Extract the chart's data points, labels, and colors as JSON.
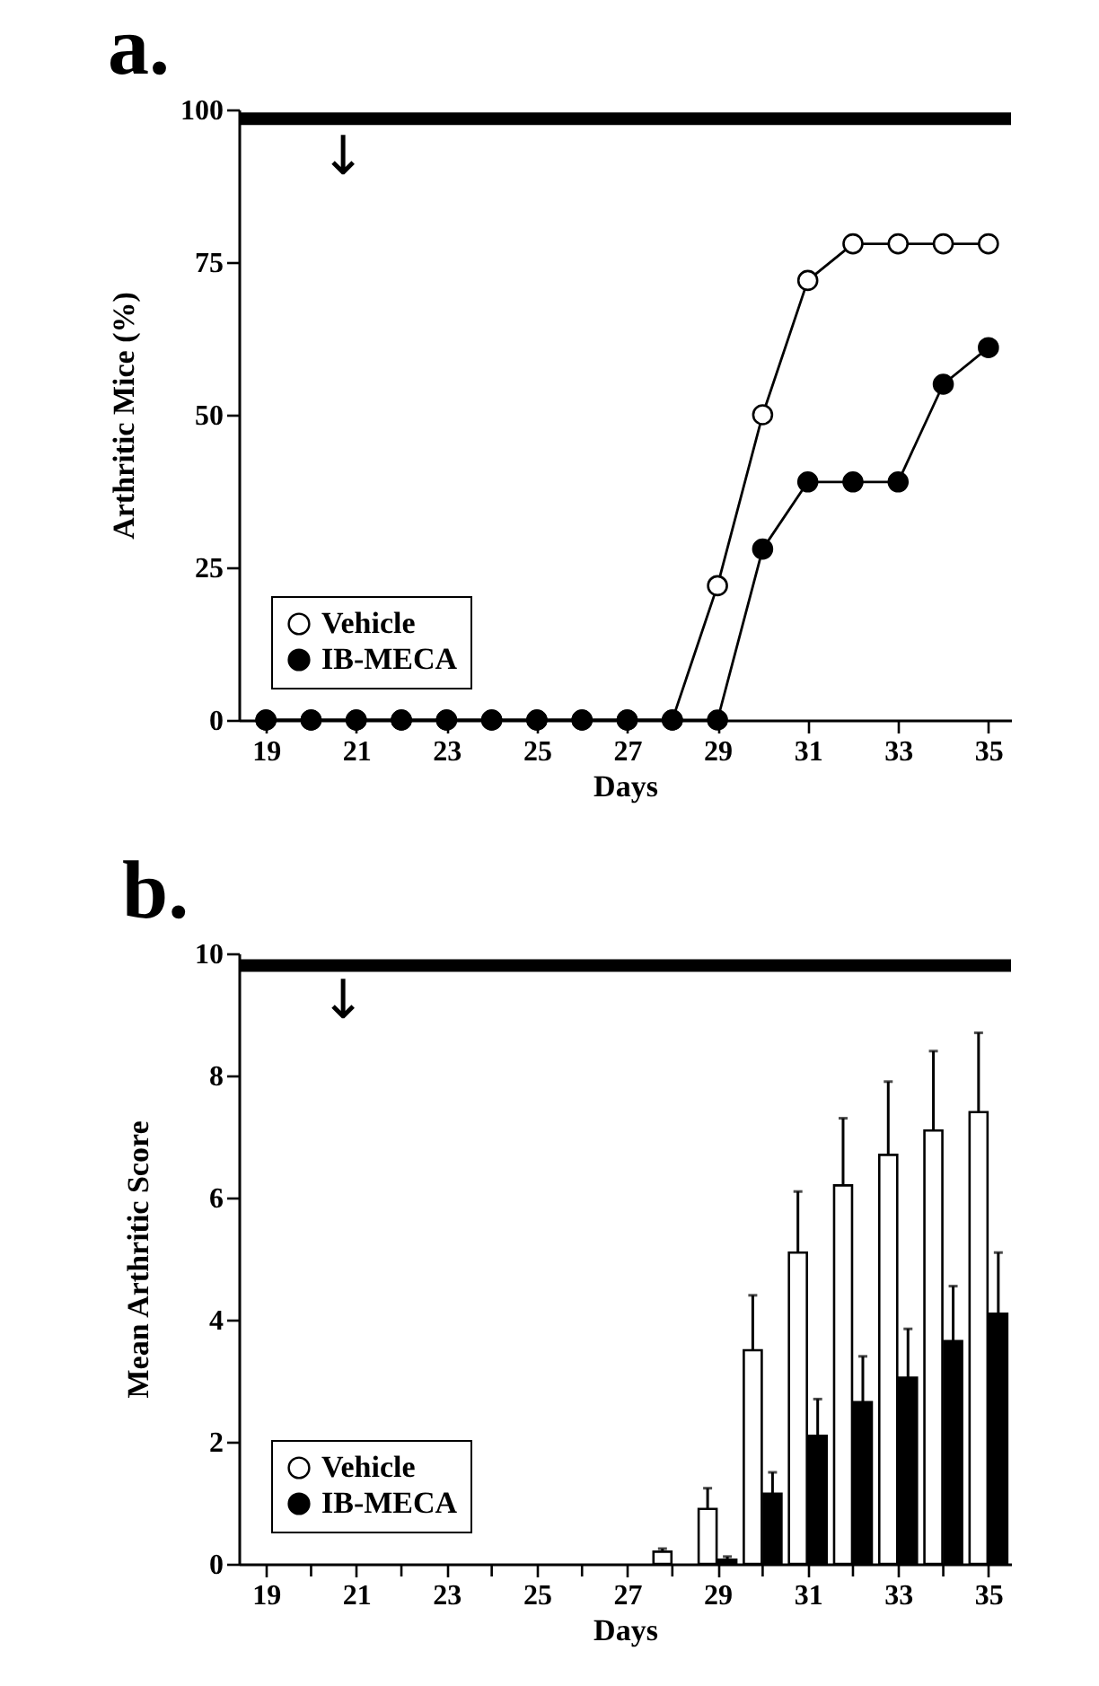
{
  "chart_data": [
    {
      "type": "line",
      "title": "a.",
      "xlabel": "Days",
      "ylabel": "Arthritic Mice (%)",
      "x": [
        19,
        20,
        21,
        22,
        23,
        24,
        25,
        26,
        27,
        28,
        29,
        30,
        31,
        32,
        33,
        34,
        35
      ],
      "xlim": [
        18.4,
        35.5
      ],
      "xticks": [
        19,
        21,
        23,
        25,
        27,
        29,
        31,
        33,
        35
      ],
      "ylim": [
        0,
        100
      ],
      "yticks": [
        0,
        25,
        50,
        75,
        100
      ],
      "marker": "circle",
      "legend": "bottom left",
      "series": [
        {
          "name": "Vehicle",
          "color": "#ffffff",
          "values": [
            0,
            0,
            0,
            0,
            0,
            0,
            0,
            0,
            0,
            0,
            22,
            50,
            72,
            78,
            78,
            78,
            78
          ]
        },
        {
          "name": "IB-MECA",
          "color": "#000000",
          "values": [
            0,
            0,
            0,
            0,
            0,
            0,
            0,
            0,
            0,
            0,
            0,
            28,
            39,
            39,
            39,
            55,
            61
          ]
        }
      ],
      "ref_lines": [
        {
          "axis": "y",
          "value": 98.5,
          "color": "#000000"
        }
      ],
      "annotations": [
        "↓"
      ]
    },
    {
      "type": "bar",
      "title": "b.",
      "xlabel": "Days",
      "ylabel": "Mean Arthritic Score",
      "x": [
        28,
        29,
        30,
        31,
        32,
        33,
        34,
        35
      ],
      "xlim": [
        18.4,
        35.5
      ],
      "xticks": [
        19,
        {
          "value": 20,
          "label": null
        },
        21,
        {
          "value": 22,
          "label": null
        },
        23,
        {
          "value": 24,
          "label": null
        },
        25,
        {
          "value": 26,
          "label": null
        },
        27,
        {
          "value": 28,
          "label": null
        },
        29,
        {
          "value": 30,
          "label": null
        },
        31,
        {
          "value": 32,
          "label": null
        },
        33,
        {
          "value": 34,
          "label": null
        },
        35
      ],
      "ylim": [
        0,
        10
      ],
      "yticks": [
        0,
        2,
        4,
        6,
        8,
        10
      ],
      "legend": "bottom left",
      "series": [
        {
          "name": "Vehicle",
          "color": "#ffffff",
          "values": [
            0.2,
            0.9,
            3.5,
            5.1,
            6.2,
            6.7,
            7.1,
            7.4
          ],
          "errors": [
            [
              0.2,
              0.25
            ],
            [
              0.9,
              1.24
            ],
            [
              3.5,
              4.4
            ],
            [
              5.1,
              6.1
            ],
            [
              6.2,
              7.3
            ],
            [
              6.7,
              7.9
            ],
            [
              7.1,
              8.4
            ],
            [
              7.4,
              8.7
            ]
          ]
        },
        {
          "name": "IB-MECA",
          "color": "#000000",
          "values": [
            null,
            0.07,
            1.15,
            2.1,
            2.65,
            3.05,
            3.65,
            4.1
          ],
          "errors": [
            null,
            [
              0.07,
              0.12
            ],
            [
              1.15,
              1.5
            ],
            [
              2.1,
              2.7
            ],
            [
              2.65,
              3.4
            ],
            [
              3.05,
              3.85
            ],
            [
              3.65,
              4.55
            ],
            [
              4.1,
              5.1
            ]
          ]
        }
      ],
      "ref_lines": [
        {
          "axis": "y",
          "value": 9.8,
          "color": "#000000"
        }
      ],
      "annotations": [
        "↓"
      ]
    }
  ]
}
